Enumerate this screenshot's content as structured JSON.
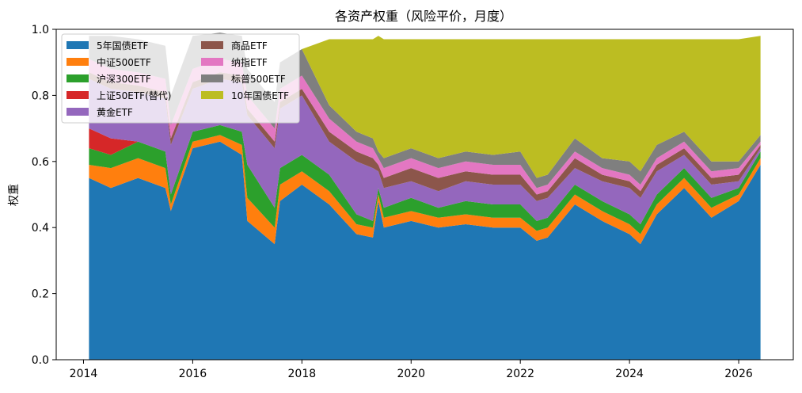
{
  "chart_data": {
    "type": "area",
    "stacked": true,
    "title": "各资产权重（风险平价，月度）",
    "xlabel": "",
    "ylabel": "权重",
    "xlim": [
      2013.5,
      2027.0
    ],
    "ylim": [
      0.0,
      1.0
    ],
    "x_ticks": [
      2014,
      2016,
      2018,
      2020,
      2022,
      2024,
      2026
    ],
    "y_ticks": [
      0.0,
      0.2,
      0.4,
      0.6,
      0.8,
      1.0
    ],
    "x_tick_labels": [
      "2014",
      "2016",
      "2018",
      "2020",
      "2022",
      "2024",
      "2026"
    ],
    "y_tick_labels": [
      "0.0",
      "0.2",
      "0.4",
      "0.6",
      "0.8",
      "1.0"
    ],
    "grid": false,
    "legend_position": "top-left",
    "legend_columns": 2,
    "x": [
      2014.1,
      2014.5,
      2015.0,
      2015.5,
      2015.6,
      2016.0,
      2016.5,
      2016.9,
      2017.0,
      2017.5,
      2017.6,
      2018.0,
      2018.5,
      2019.0,
      2019.3,
      2019.4,
      2019.5,
      2020.0,
      2020.5,
      2021.0,
      2021.5,
      2022.0,
      2022.3,
      2022.5,
      2023.0,
      2023.5,
      2024.0,
      2024.2,
      2024.5,
      2025.0,
      2025.5,
      2026.0,
      2026.4
    ],
    "series": [
      {
        "name": "5年国债ETF",
        "color": "#1f77b4",
        "values": [
          0.55,
          0.52,
          0.55,
          0.52,
          0.45,
          0.64,
          0.66,
          0.62,
          0.42,
          0.35,
          0.48,
          0.53,
          0.47,
          0.38,
          0.37,
          0.48,
          0.4,
          0.42,
          0.4,
          0.41,
          0.4,
          0.4,
          0.36,
          0.37,
          0.47,
          0.42,
          0.38,
          0.35,
          0.44,
          0.52,
          0.43,
          0.48,
          0.59
        ]
      },
      {
        "name": "中证500ETF",
        "color": "#ff7f0e",
        "values": [
          0.04,
          0.06,
          0.06,
          0.06,
          0.02,
          0.02,
          0.02,
          0.03,
          0.07,
          0.05,
          0.05,
          0.04,
          0.04,
          0.03,
          0.03,
          0.02,
          0.03,
          0.03,
          0.03,
          0.03,
          0.03,
          0.03,
          0.03,
          0.03,
          0.03,
          0.03,
          0.03,
          0.03,
          0.03,
          0.03,
          0.03,
          0.02,
          0.02
        ]
      },
      {
        "name": "沪深300ETF",
        "color": "#2ca02c",
        "values": [
          0.05,
          0.04,
          0.05,
          0.05,
          0.03,
          0.03,
          0.03,
          0.04,
          0.1,
          0.06,
          0.05,
          0.05,
          0.05,
          0.03,
          0.02,
          0.02,
          0.03,
          0.04,
          0.03,
          0.04,
          0.04,
          0.04,
          0.03,
          0.03,
          0.03,
          0.03,
          0.03,
          0.03,
          0.03,
          0.03,
          0.03,
          0.02,
          0.02
        ]
      },
      {
        "name": "上证50ETF(替代)",
        "color": "#d62728",
        "values": [
          0.06,
          0.05,
          0.0,
          0.0,
          0.0,
          0.0,
          0.0,
          0.0,
          0.0,
          0.0,
          0.0,
          0.0,
          0.0,
          0.0,
          0.0,
          0.0,
          0.0,
          0.0,
          0.0,
          0.0,
          0.0,
          0.0,
          0.0,
          0.0,
          0.0,
          0.0,
          0.0,
          0.0,
          0.0,
          0.0,
          0.0,
          0.0,
          0.0
        ]
      },
      {
        "name": "黄金ETF",
        "color": "#9467bd",
        "values": [
          0.15,
          0.15,
          0.15,
          0.16,
          0.15,
          0.13,
          0.14,
          0.15,
          0.15,
          0.18,
          0.18,
          0.18,
          0.1,
          0.16,
          0.16,
          0.05,
          0.06,
          0.05,
          0.05,
          0.06,
          0.06,
          0.06,
          0.06,
          0.06,
          0.05,
          0.06,
          0.08,
          0.08,
          0.07,
          0.04,
          0.04,
          0.02,
          0.01
        ]
      },
      {
        "name": "商品ETF",
        "color": "#8c564b",
        "values": [
          0.02,
          0.02,
          0.02,
          0.02,
          0.02,
          0.02,
          0.02,
          0.02,
          0.02,
          0.02,
          0.02,
          0.02,
          0.03,
          0.03,
          0.03,
          0.02,
          0.03,
          0.04,
          0.04,
          0.03,
          0.03,
          0.03,
          0.02,
          0.02,
          0.03,
          0.02,
          0.02,
          0.02,
          0.02,
          0.02,
          0.02,
          0.02,
          0.01
        ]
      },
      {
        "name": "纳指ETF",
        "color": "#e377c2",
        "values": [
          0.04,
          0.04,
          0.04,
          0.04,
          0.04,
          0.04,
          0.04,
          0.04,
          0.04,
          0.04,
          0.04,
          0.04,
          0.04,
          0.03,
          0.03,
          0.02,
          0.03,
          0.03,
          0.03,
          0.03,
          0.03,
          0.03,
          0.02,
          0.02,
          0.02,
          0.02,
          0.02,
          0.02,
          0.02,
          0.02,
          0.02,
          0.02,
          0.01
        ]
      },
      {
        "name": "标普500ETF",
        "color": "#7f7f7f",
        "values": [
          0.07,
          0.1,
          0.1,
          0.1,
          0.09,
          0.1,
          0.08,
          0.08,
          0.08,
          0.08,
          0.08,
          0.08,
          0.04,
          0.03,
          0.03,
          0.02,
          0.03,
          0.03,
          0.03,
          0.03,
          0.03,
          0.04,
          0.03,
          0.03,
          0.04,
          0.03,
          0.04,
          0.04,
          0.04,
          0.03,
          0.03,
          0.02,
          0.02
        ]
      },
      {
        "name": "10年国债ETF",
        "color": "#bcbd22",
        "values": [
          0.0,
          0.0,
          0.0,
          0.0,
          0.0,
          0.0,
          0.0,
          0.0,
          0.0,
          0.0,
          0.0,
          0.0,
          0.2,
          0.28,
          0.3,
          0.35,
          0.36,
          0.33,
          0.36,
          0.34,
          0.35,
          0.34,
          0.42,
          0.41,
          0.3,
          0.36,
          0.37,
          0.4,
          0.32,
          0.28,
          0.37,
          0.37,
          0.3
        ]
      }
    ]
  }
}
